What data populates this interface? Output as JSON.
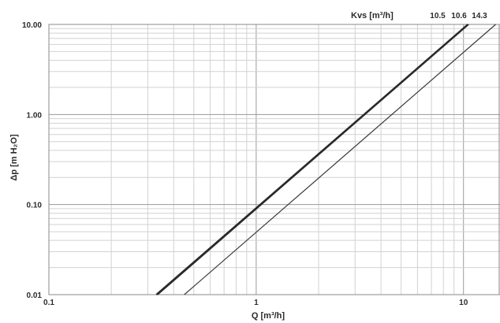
{
  "chart_data": {
    "type": "line",
    "xscale": "log",
    "yscale": "log",
    "xlim": [
      0.1,
      15
    ],
    "ylim": [
      0.01,
      10
    ],
    "grid": true,
    "xlabel": "Q [m³/h]",
    "ylabel": "Δp [m H₂O]",
    "legend_title": "Kvs [m³/h]",
    "x_ticks": [
      {
        "value": 0.1,
        "label": "0.1"
      },
      {
        "value": 1,
        "label": "1"
      },
      {
        "value": 10,
        "label": "10"
      }
    ],
    "y_ticks": [
      {
        "value": 0.01,
        "label": "0.01"
      },
      {
        "value": 0.1,
        "label": "0.10"
      },
      {
        "value": 1,
        "label": "1.00"
      },
      {
        "value": 10,
        "label": "10.00"
      }
    ],
    "series": [
      {
        "name": "10.5",
        "kvs": 10.5,
        "label": "10.5",
        "stroke": "#2a2a2a",
        "points": [
          [
            0.33,
            0.01
          ],
          [
            10.5,
            10
          ]
        ]
      },
      {
        "name": "10.6",
        "kvs": 10.6,
        "label": "10.6",
        "stroke": "#2a2a2a",
        "points": [
          [
            0.335,
            0.01
          ],
          [
            10.6,
            10
          ]
        ]
      },
      {
        "name": "14.3",
        "kvs": 14.3,
        "label": "14.3",
        "stroke": "#3a3a3a",
        "points": [
          [
            0.45,
            0.01
          ],
          [
            14.3,
            10
          ]
        ]
      }
    ]
  }
}
